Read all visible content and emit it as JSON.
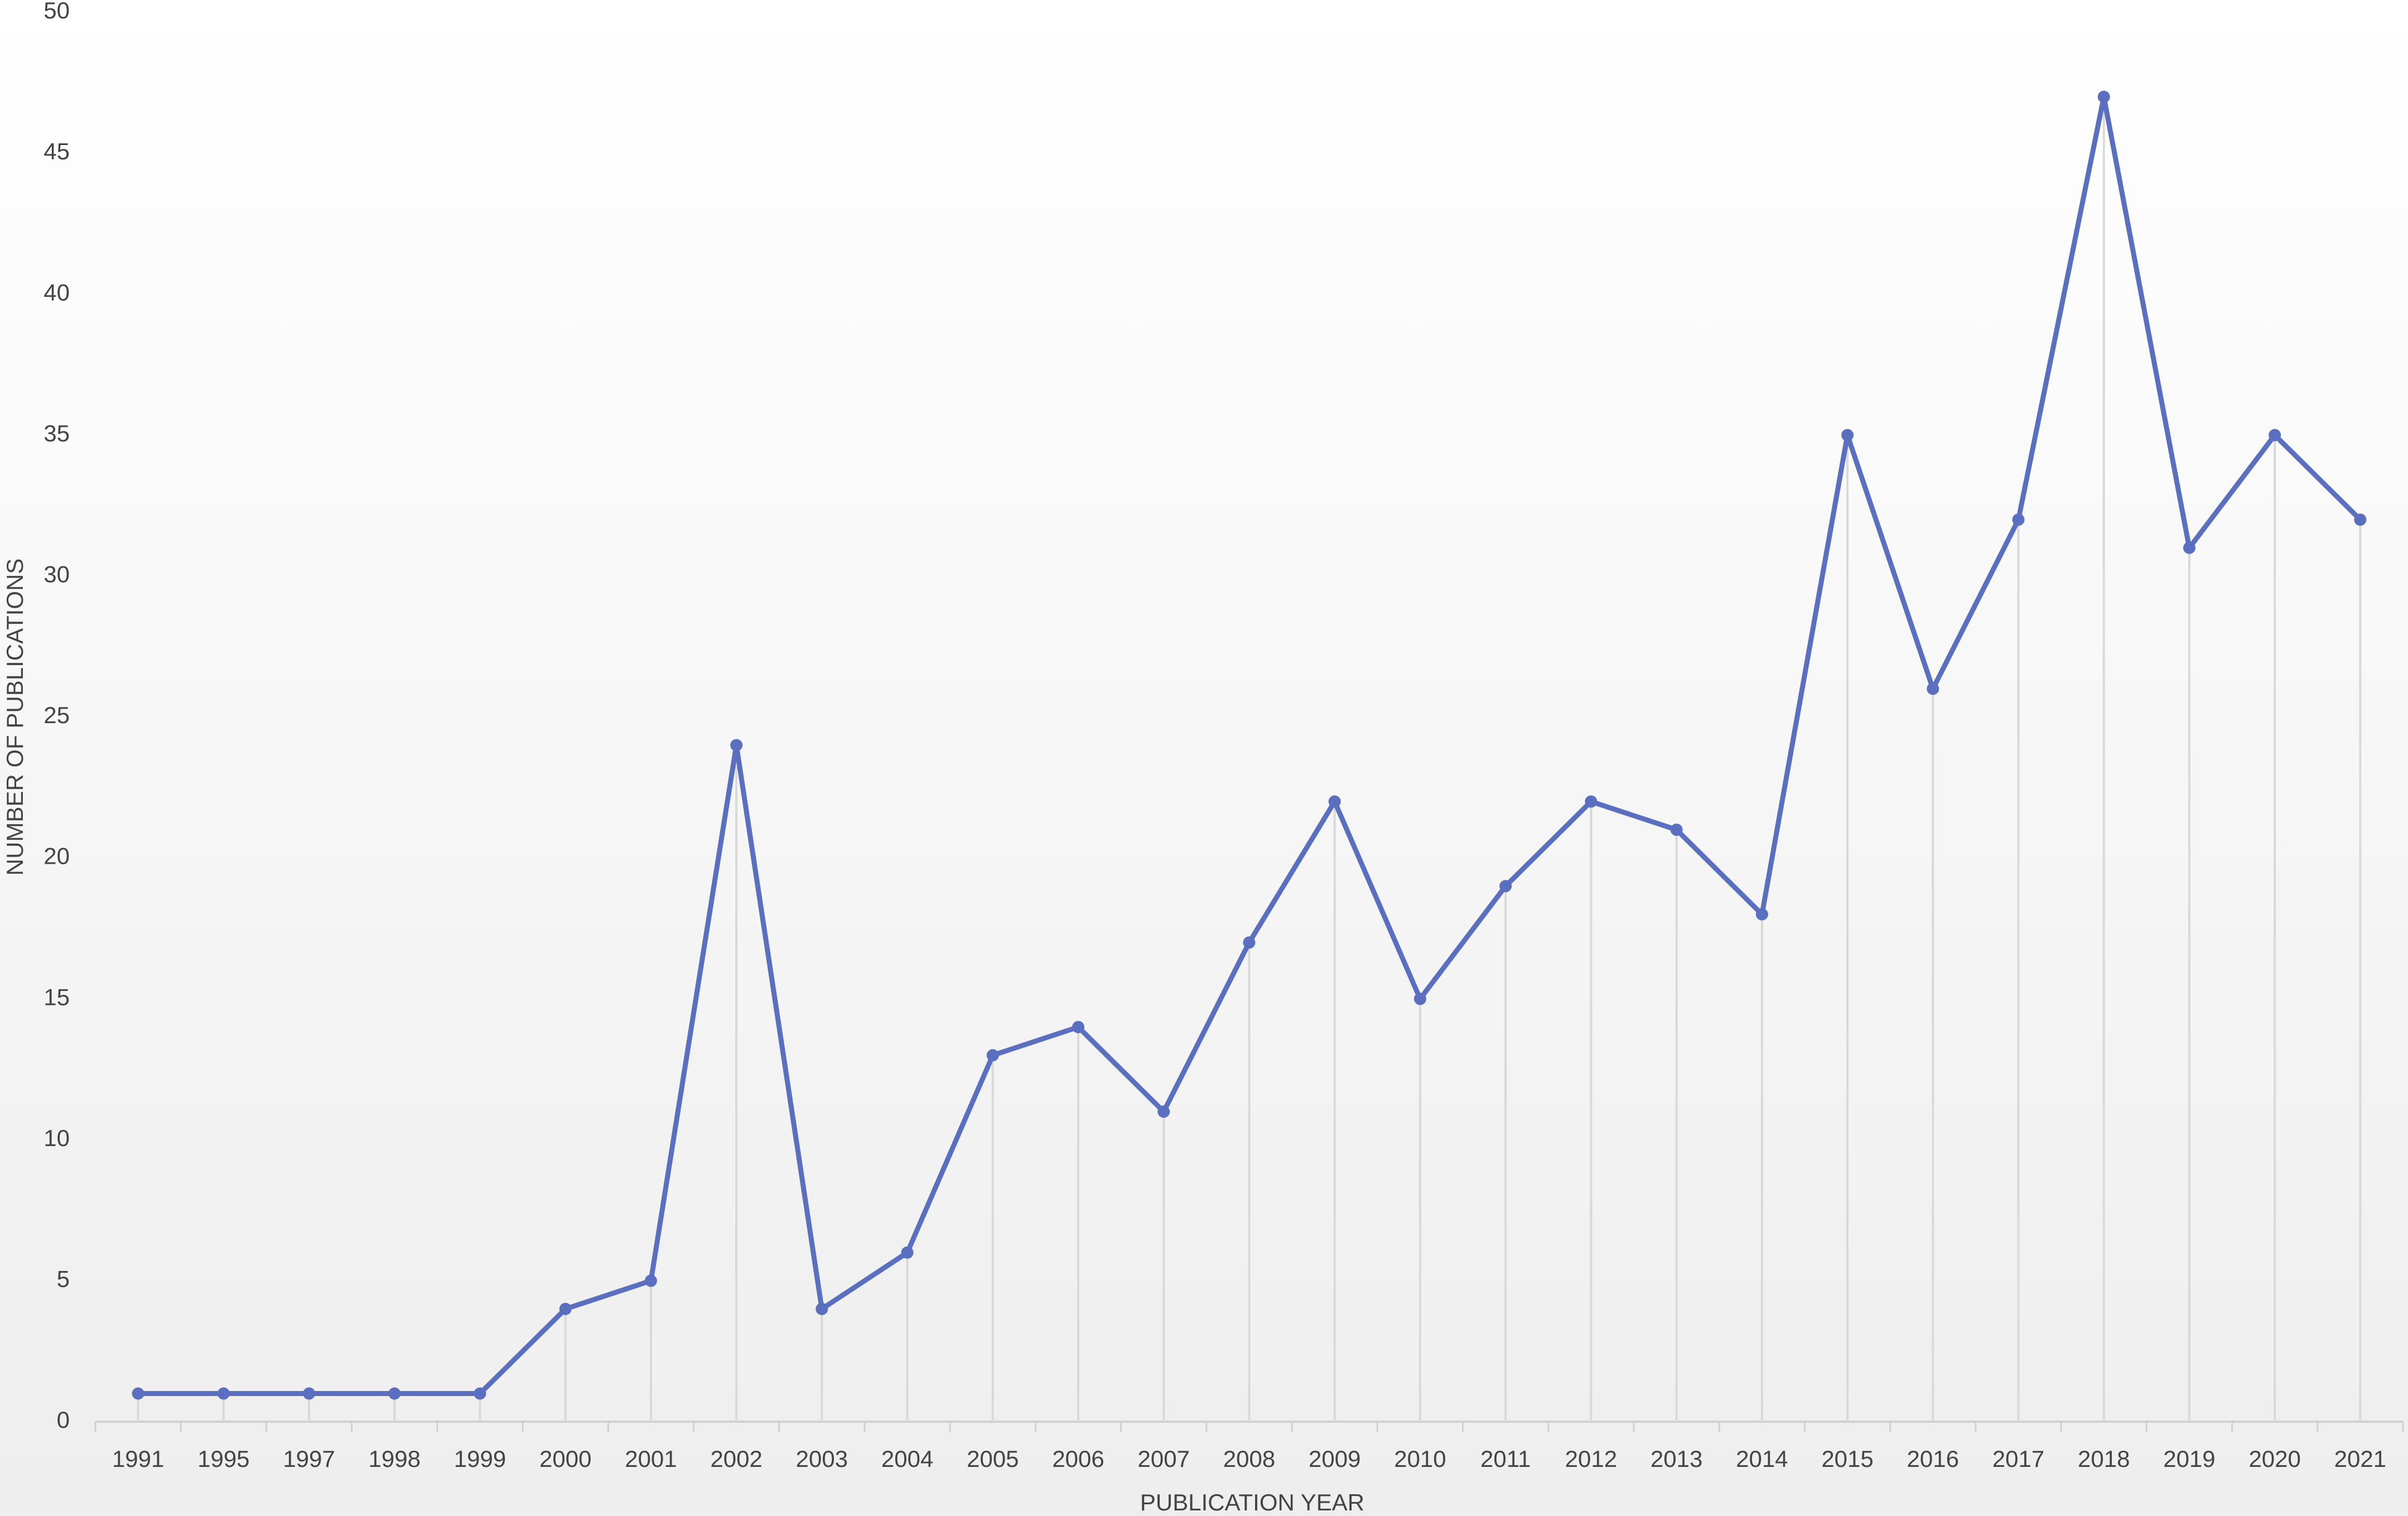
{
  "chart_data": {
    "type": "line",
    "x_label": "PUBLICATION YEAR",
    "y_label": "NUMBER OF PUBLICATIONS",
    "categories": [
      "1991",
      "1995",
      "1997",
      "1998",
      "1999",
      "2000",
      "2001",
      "2002",
      "2003",
      "2004",
      "2005",
      "2006",
      "2007",
      "2008",
      "2009",
      "2010",
      "2011",
      "2012",
      "2013",
      "2014",
      "2015",
      "2016",
      "2017",
      "2018",
      "2019",
      "2020",
      "2021"
    ],
    "values": [
      1,
      1,
      1,
      1,
      1,
      4,
      5,
      24,
      4,
      6,
      13,
      14,
      11,
      17,
      22,
      15,
      19,
      22,
      21,
      18,
      35,
      26,
      32,
      47,
      31,
      35,
      32
    ],
    "color": "#5a6fbf",
    "drop_lines": true,
    "ylim": [
      0,
      50
    ],
    "yticks": [
      0,
      5,
      10,
      15,
      20,
      25,
      30,
      35,
      40,
      45,
      50
    ]
  }
}
